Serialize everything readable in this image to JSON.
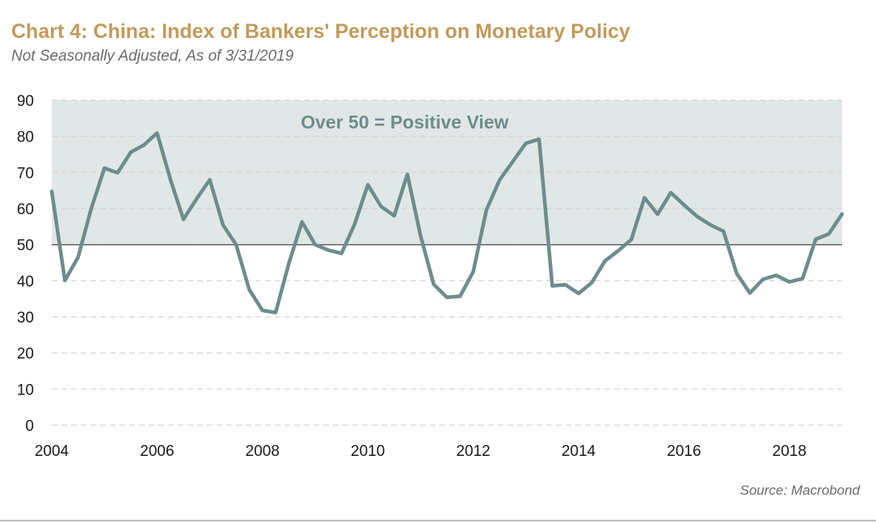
{
  "header": {
    "title": "Chart 4: China: Index of Bankers' Perception on Monetary Policy",
    "subtitle": "Not Seasonally Adjusted, As of 3/31/2019"
  },
  "footer": {
    "source": "Source: Macrobond"
  },
  "colors": {
    "title": "#c19a5b",
    "line": "#6e8c8c",
    "shade": "#e1e7e7",
    "annotation": "#6e8c8c",
    "grid": "#d4d4d4",
    "threshold": "#555555"
  },
  "chart_data": {
    "type": "line",
    "title": "Chart 4: China: Index of Bankers' Perception on Monetary Policy",
    "subtitle": "Not Seasonally Adjusted, As of 3/31/2019",
    "xlabel": "",
    "ylabel": "",
    "xlim": [
      2004.0,
      2019.0
    ],
    "ylim": [
      0,
      90
    ],
    "yticks": [
      "0",
      "10",
      "20",
      "30",
      "40",
      "50",
      "60",
      "70",
      "80",
      "90"
    ],
    "xticks": [
      "2004",
      "2006",
      "2008",
      "2010",
      "2012",
      "2014",
      "2016",
      "2018"
    ],
    "grid": "horizontal dashed",
    "threshold": 50,
    "shaded_region": [
      50,
      90
    ],
    "annotation": "Over 50 = Positive View",
    "series": [
      {
        "name": "",
        "x": [
          2004.0,
          2004.25,
          2004.5,
          2004.75,
          2005.0,
          2005.25,
          2005.5,
          2005.75,
          2006.0,
          2006.25,
          2006.5,
          2006.75,
          2007.0,
          2007.25,
          2007.5,
          2007.75,
          2008.0,
          2008.25,
          2008.5,
          2008.75,
          2009.0,
          2009.25,
          2009.5,
          2009.75,
          2010.0,
          2010.25,
          2010.5,
          2010.75,
          2011.0,
          2011.25,
          2011.5,
          2011.75,
          2012.0,
          2012.25,
          2012.5,
          2012.75,
          2013.0,
          2013.25,
          2013.5,
          2013.75,
          2014.0,
          2014.25,
          2014.5,
          2014.75,
          2015.0,
          2015.25,
          2015.5,
          2015.75,
          2016.0,
          2016.25,
          2016.5,
          2016.75,
          2017.0,
          2017.25,
          2017.5,
          2017.75,
          2018.0,
          2018.25,
          2018.5,
          2018.75,
          2019.0
        ],
        "values": [
          64.8,
          40.1,
          46.5,
          60.0,
          71.2,
          69.9,
          75.6,
          77.6,
          80.9,
          68.2,
          57.0,
          62.7,
          68.0,
          55.5,
          50.0,
          37.5,
          31.8,
          31.2,
          44.8,
          56.3,
          50.0,
          48.5,
          47.6,
          55.7,
          66.6,
          60.6,
          58.0,
          69.5,
          52.5,
          39.0,
          35.4,
          35.7,
          42.5,
          59.6,
          67.9,
          73.0,
          78.1,
          79.2,
          38.6,
          38.9,
          36.5,
          39.5,
          45.5,
          48.3,
          51.4,
          63.0,
          58.4,
          64.4,
          61.0,
          57.8,
          55.5,
          53.7,
          42.0,
          36.6,
          40.4,
          41.5,
          39.7,
          40.6,
          51.5,
          53.0,
          58.5
        ]
      }
    ]
  }
}
